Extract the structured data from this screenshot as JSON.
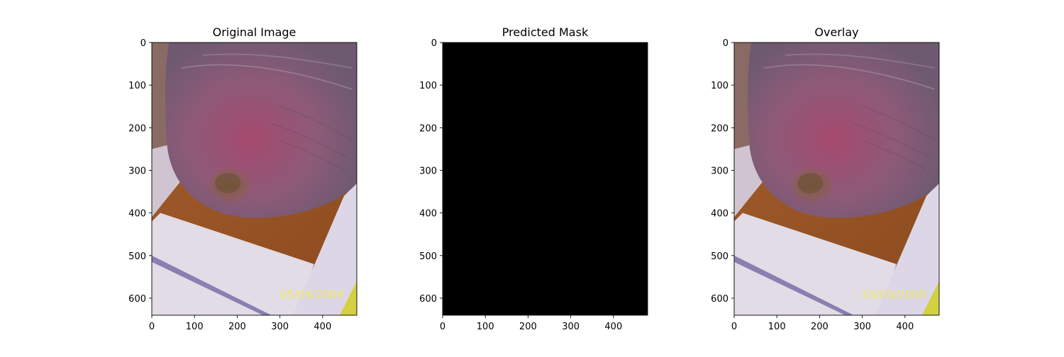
{
  "chart_data": [
    {
      "type": "image",
      "title": "Original Image",
      "content": "photo",
      "xlim": [
        0,
        480
      ],
      "ylim": [
        640,
        0
      ],
      "xticks": [
        0,
        100,
        200,
        300,
        400
      ],
      "yticks": [
        0,
        100,
        200,
        300,
        400,
        500,
        600
      ],
      "xtick_labels": [
        "0",
        "100",
        "200",
        "300",
        "400"
      ],
      "ytick_labels": [
        "0",
        "100",
        "200",
        "300",
        "400",
        "500",
        "600"
      ],
      "embedded_text": "05/09/2009"
    },
    {
      "type": "image",
      "title": "Predicted Mask",
      "content": "mask",
      "fill_color": "#000000",
      "xlim": [
        0,
        480
      ],
      "ylim": [
        640,
        0
      ],
      "xticks": [
        0,
        100,
        200,
        300,
        400
      ],
      "yticks": [
        0,
        100,
        200,
        300,
        400,
        500,
        600
      ],
      "xtick_labels": [
        "0",
        "100",
        "200",
        "300",
        "400"
      ],
      "ytick_labels": [
        "0",
        "100",
        "200",
        "300",
        "400",
        "500",
        "600"
      ]
    },
    {
      "type": "image",
      "title": "Overlay",
      "content": "photo",
      "xlim": [
        0,
        480
      ],
      "ylim": [
        640,
        0
      ],
      "xticks": [
        0,
        100,
        200,
        300,
        400
      ],
      "yticks": [
        0,
        100,
        200,
        300,
        400,
        500,
        600
      ],
      "xtick_labels": [
        "0",
        "100",
        "200",
        "300",
        "400"
      ],
      "ytick_labels": [
        "0",
        "100",
        "200",
        "300",
        "400",
        "500",
        "600"
      ],
      "embedded_text": "05/09/2009"
    }
  ]
}
